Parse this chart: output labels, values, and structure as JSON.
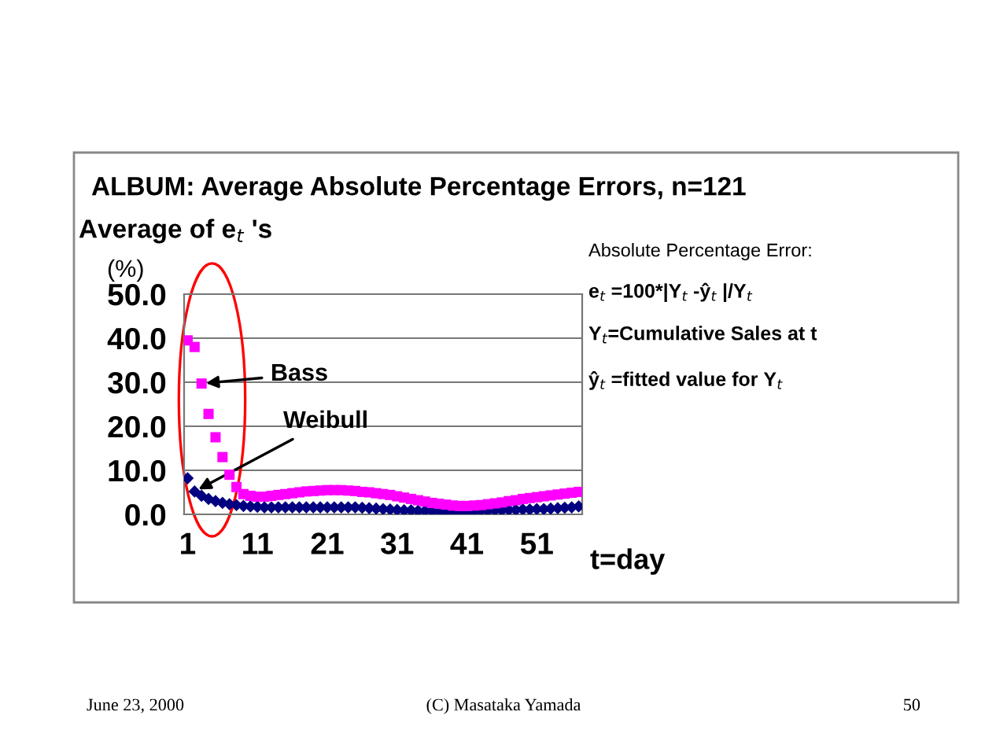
{
  "chart_data": {
    "type": "scatter",
    "title": "ALBUM: Average Absolute Percentage Errors, n=121",
    "ylabel": "Average of e$_{t}$ 's\n(%)",
    "xlabel": "t=day",
    "x": [
      1,
      2,
      3,
      4,
      5,
      6,
      7,
      8,
      9,
      10,
      11,
      12,
      13,
      14,
      15,
      16,
      17,
      18,
      19,
      20,
      21,
      22,
      23,
      24,
      25,
      26,
      27,
      28,
      29,
      30,
      31,
      32,
      33,
      34,
      35,
      36,
      37,
      38,
      39,
      40,
      41,
      42,
      43,
      44,
      45,
      46,
      47,
      48,
      49,
      50,
      51,
      52,
      53,
      54,
      55,
      56,
      57
    ],
    "series": [
      {
        "color": "#ff00ff",
        "marker": "square",
        "values": [
          39.5,
          38,
          29.7,
          22.8,
          17.5,
          13,
          9,
          6.2,
          4.6,
          4.2,
          4,
          4,
          4.2,
          4.4,
          4.6,
          4.8,
          5,
          5.2,
          5.3,
          5.4,
          5.5,
          5.5,
          5.5,
          5.4,
          5.3,
          5.1,
          5,
          4.8,
          4.6,
          4.4,
          4.1,
          3.8,
          3.5,
          3.2,
          2.9,
          2.6,
          2.4,
          2.2,
          2.0,
          1.9,
          1.9,
          2.0,
          2.1,
          2.3,
          2.5,
          2.7,
          3.0,
          3.2,
          3.5,
          3.7,
          3.9,
          4.1,
          4.3,
          4.5,
          4.7,
          4.9,
          5.1
        ]
      },
      {
        "color": "#000080",
        "marker": "diamond",
        "values": [
          8.2,
          5.2,
          4.2,
          3.5,
          3,
          2.6,
          2.3,
          2.1,
          1.9,
          1.8,
          1.7,
          1.6,
          1.6,
          1.6,
          1.6,
          1.6,
          1.6,
          1.6,
          1.6,
          1.6,
          1.6,
          1.6,
          1.6,
          1.6,
          1.6,
          1.5,
          1.4,
          1.3,
          1.2,
          1.1,
          1.0,
          0.9,
          0.9,
          0.8,
          0.8,
          0.8,
          0.7,
          0.7,
          0.7,
          0.7,
          0.7,
          0.7,
          0.8,
          0.8,
          0.9,
          0.9,
          1.0,
          1.0,
          1.1,
          1.1,
          1.2,
          1.2,
          1.3,
          1.4,
          1.5,
          1.6,
          1.8
        ]
      }
    ],
    "xlim": [
      0.5,
      57.5
    ],
    "xticks": [
      1,
      11,
      21,
      31,
      41,
      51
    ],
    "ylim": [
      0,
      50
    ],
    "yticks": [
      {
        "value": 0,
        "label": "0.0"
      },
      {
        "value": 10,
        "label": "10.0"
      },
      {
        "value": 20,
        "label": "20.0"
      },
      {
        "value": 30,
        "label": "30.0"
      },
      {
        "value": 40,
        "label": "40.0"
      },
      {
        "value": 50,
        "label": "50.0"
      }
    ],
    "grid": "y",
    "legend": false,
    "annotations": [
      {
        "text": "Bass",
        "x": 3,
        "y": 29.7
      },
      {
        "text": "Weibull",
        "x": 2,
        "y": 5.2
      },
      "Absolute Percentage Error:",
      "e$_{t}$ =100*|Y$_{t}$ -ŷ$_{t}$ |/Y$_{t}$",
      "Y$_{t}$=Cumulative Sales at t",
      "ŷ$_{t}$ =fitted value for Y$_{t}$",
      "June 23, 2000",
      "(C) Masataka Yamada",
      "50"
    ]
  }
}
